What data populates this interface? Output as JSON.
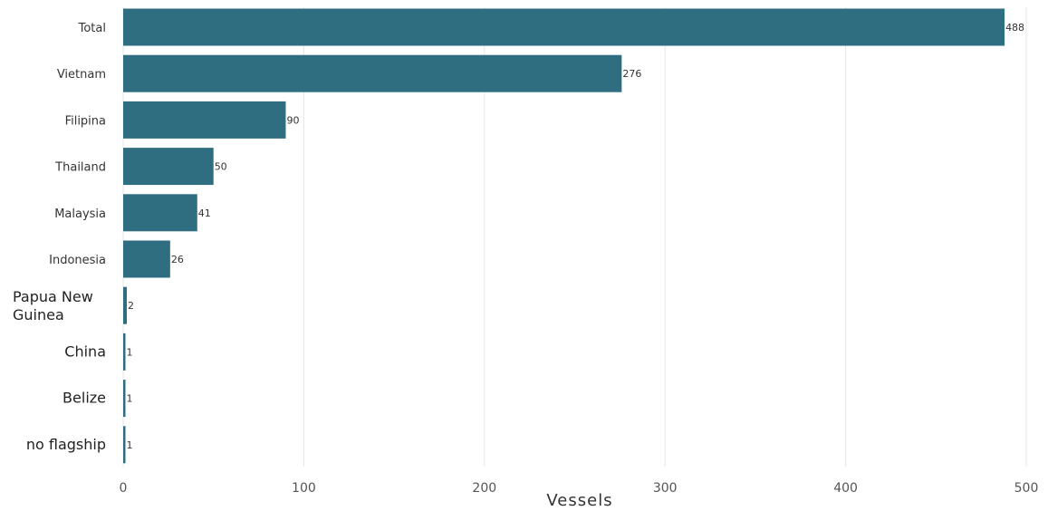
{
  "chart_data": {
    "type": "bar",
    "orientation": "horizontal",
    "categories": [
      "Total",
      "Vietnam",
      "Filipina",
      "Thailand",
      "Malaysia",
      "Indonesia",
      "Papua New Guinea",
      "China",
      "Belize",
      "no flagship"
    ],
    "values": [
      488,
      276,
      90,
      50,
      41,
      26,
      2,
      1,
      1,
      1
    ],
    "data_labels": [
      "488",
      "276",
      "90",
      "50",
      "41",
      "26",
      "2",
      "1",
      "1",
      "1"
    ],
    "xlabel": "Vessels",
    "ylabel": "",
    "xlim": [
      0,
      500
    ],
    "xticks": [
      0,
      100,
      200,
      300,
      400,
      500
    ],
    "grid": "vertical",
    "legend": "none",
    "colors": {
      "bar": "#2f6e80",
      "grid": "#e6e6e6"
    }
  }
}
